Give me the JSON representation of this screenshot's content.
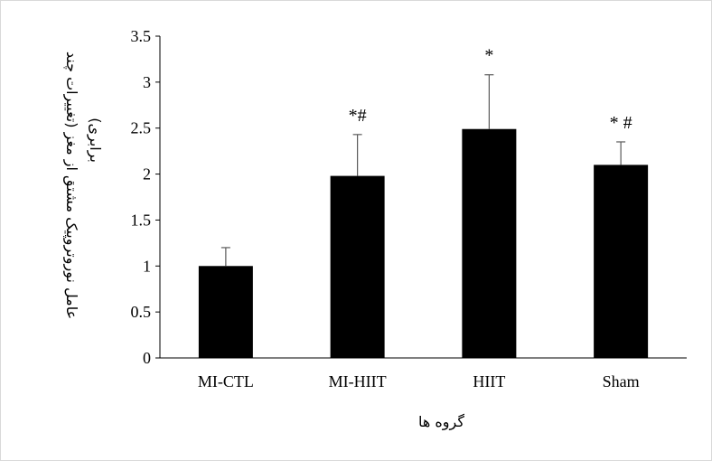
{
  "chart_data": {
    "type": "bar",
    "categories": [
      "MI-CTL",
      "MI-HIIT",
      "HIIT",
      "Sham"
    ],
    "values": [
      1.0,
      1.98,
      2.49,
      2.1
    ],
    "error": [
      0.2,
      0.45,
      0.59,
      0.25
    ],
    "annotations": [
      "",
      "*#",
      "*",
      "* #"
    ],
    "xlabel": "گروه ها",
    "ylabel": "عامل نوروتروپیک مشتق از مغز (تغییرات چند برابری)",
    "ylabel_lines": [
      "عامل نوروتروپیک مشتق از مغز (تغییرات چند",
      "برابری)"
    ],
    "ylim": [
      0,
      3.5
    ],
    "yticks": [
      "0",
      "0.5",
      "1",
      "1.5",
      "2",
      "2.5",
      "3",
      "3.5"
    ],
    "grid": false,
    "legend": "none",
    "bar_color": "#000000"
  }
}
